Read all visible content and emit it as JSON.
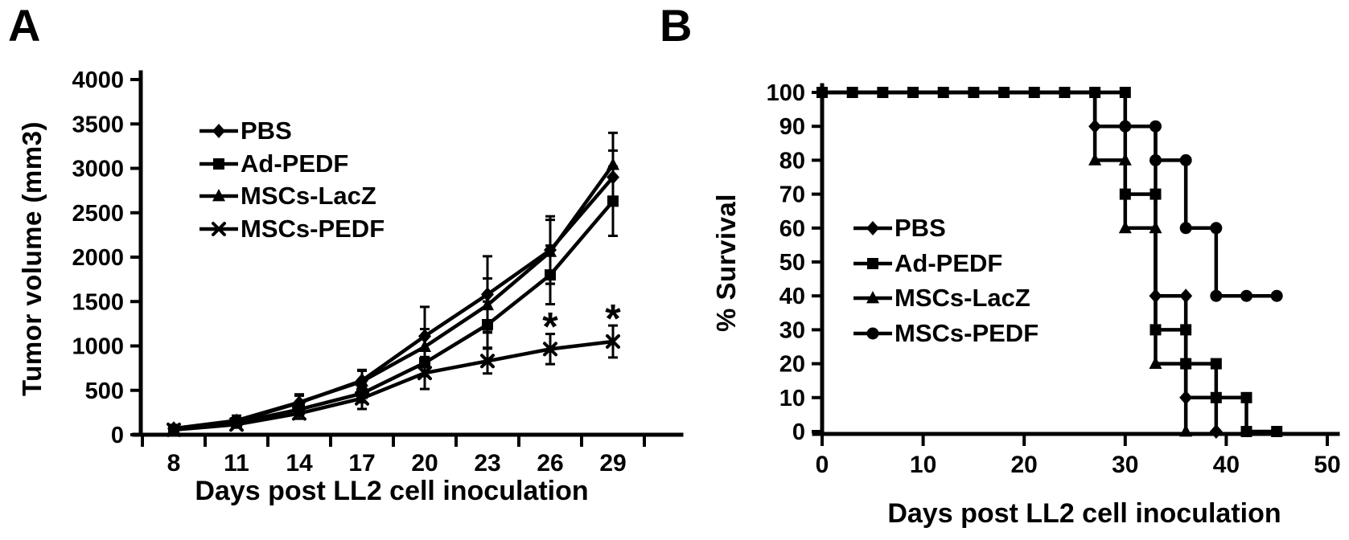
{
  "colors": {
    "ink": "#000000",
    "background": "#ffffff"
  },
  "panel_a": {
    "letter": "A",
    "y_axis_title": "Tumor volume (mm3)",
    "x_axis_title": "Days  post LL2 cell inoculation",
    "legend": [
      "PBS",
      "Ad-PEDF",
      "MSCs-LacZ",
      "MSCs-PEDF"
    ],
    "significance_marker": "*"
  },
  "panel_b": {
    "letter": "B",
    "y_axis_title": "% Survival",
    "x_axis_title": "Days  post LL2 cell inoculation",
    "legend": [
      "PBS",
      "Ad-PEDF",
      "MSCs-LacZ",
      "MSCs-PEDF"
    ]
  },
  "chart_data": [
    {
      "id": "tumor-volume",
      "type": "line",
      "title": "",
      "xlabel": "Days  post LL2 cell inoculation",
      "ylabel": "Tumor volume (mm3)",
      "categories": [
        8,
        11,
        14,
        17,
        20,
        23,
        26,
        29
      ],
      "xticks": [
        "8",
        "11",
        "14",
        "17",
        "20",
        "23",
        "26",
        "29"
      ],
      "ylim": [
        0,
        4000
      ],
      "ytick_step": 500,
      "yticks": [
        "0",
        "500",
        "1000",
        "1500",
        "2000",
        "2500",
        "3000",
        "3500",
        "4000"
      ],
      "grid": false,
      "legend_position": "upper-left-inside",
      "series": [
        {
          "name": "PBS",
          "marker": "diamond",
          "values": [
            70,
            150,
            360,
            610,
            1110,
            1580,
            2080,
            2900
          ],
          "errors": [
            25,
            50,
            80,
            110,
            330,
            430,
            380,
            300
          ]
        },
        {
          "name": "Ad-PEDF",
          "marker": "square",
          "values": [
            60,
            135,
            285,
            465,
            810,
            1240,
            1800,
            2630
          ],
          "errors": [
            20,
            45,
            70,
            100,
            150,
            260,
            330,
            390
          ]
        },
        {
          "name": "MSCs-LacZ",
          "marker": "triangle",
          "values": [
            70,
            160,
            365,
            600,
            990,
            1460,
            2060,
            3040
          ],
          "errors": [
            25,
            55,
            90,
            130,
            200,
            300,
            360,
            360
          ]
        },
        {
          "name": "MSCs-PEDF",
          "marker": "xmark",
          "values": [
            55,
            115,
            240,
            410,
            695,
            830,
            965,
            1050
          ],
          "errors": [
            15,
            35,
            60,
            120,
            180,
            140,
            170,
            180
          ]
        }
      ],
      "annotations": [
        {
          "x": 26,
          "y": 1300,
          "text": "*"
        },
        {
          "x": 29,
          "y": 1390,
          "text": "*"
        }
      ]
    },
    {
      "id": "survival",
      "type": "step-line",
      "title": "",
      "xlabel": "Days  post LL2 cell inoculation",
      "ylabel": "% Survival",
      "xlim": [
        0,
        50
      ],
      "xticks": [
        "0",
        "10",
        "20",
        "30",
        "40",
        "50"
      ],
      "ylim": [
        0,
        100
      ],
      "ytick_step": 10,
      "yticks": [
        "0",
        "10",
        "20",
        "30",
        "40",
        "50",
        "60",
        "70",
        "80",
        "90",
        "100"
      ],
      "grid": false,
      "legend_position": "center-left-inside",
      "series": [
        {
          "name": "PBS",
          "marker": "diamond",
          "steps": [
            [
              0,
              100
            ],
            [
              27,
              100
            ],
            [
              27,
              90
            ],
            [
              33,
              90
            ],
            [
              33,
              40
            ],
            [
              36,
              40
            ],
            [
              36,
              10
            ],
            [
              39,
              10
            ],
            [
              39,
              0
            ]
          ],
          "marker_points": [
            [
              27,
              90
            ],
            [
              33,
              40
            ],
            [
              36,
              40
            ],
            [
              36,
              10
            ],
            [
              39,
              10
            ],
            [
              39,
              0
            ]
          ]
        },
        {
          "name": "Ad-PEDF",
          "marker": "square",
          "steps": [
            [
              0,
              100
            ],
            [
              30,
              100
            ],
            [
              30,
              70
            ],
            [
              33,
              70
            ],
            [
              33,
              30
            ],
            [
              36,
              30
            ],
            [
              36,
              20
            ],
            [
              39,
              20
            ],
            [
              39,
              10
            ],
            [
              42,
              10
            ],
            [
              42,
              0
            ],
            [
              45,
              0
            ]
          ],
          "marker_points": [
            [
              0,
              100
            ],
            [
              3,
              100
            ],
            [
              6,
              100
            ],
            [
              9,
              100
            ],
            [
              12,
              100
            ],
            [
              15,
              100
            ],
            [
              18,
              100
            ],
            [
              21,
              100
            ],
            [
              24,
              100
            ],
            [
              27,
              100
            ],
            [
              30,
              100
            ],
            [
              30,
              70
            ],
            [
              33,
              70
            ],
            [
              33,
              30
            ],
            [
              36,
              30
            ],
            [
              36,
              20
            ],
            [
              39,
              20
            ],
            [
              39,
              10
            ],
            [
              42,
              10
            ],
            [
              42,
              0
            ],
            [
              45,
              0
            ]
          ]
        },
        {
          "name": "MSCs-LacZ",
          "marker": "triangle",
          "steps": [
            [
              0,
              100
            ],
            [
              27,
              100
            ],
            [
              27,
              80
            ],
            [
              30,
              80
            ],
            [
              30,
              60
            ],
            [
              33,
              60
            ],
            [
              33,
              20
            ],
            [
              36,
              20
            ],
            [
              36,
              0
            ]
          ],
          "marker_points": [
            [
              27,
              80
            ],
            [
              30,
              80
            ],
            [
              30,
              60
            ],
            [
              33,
              60
            ],
            [
              33,
              20
            ],
            [
              36,
              0
            ]
          ]
        },
        {
          "name": "MSCs-PEDF",
          "marker": "circle",
          "steps": [
            [
              0,
              100
            ],
            [
              30,
              100
            ],
            [
              30,
              90
            ],
            [
              33,
              90
            ],
            [
              33,
              80
            ],
            [
              36,
              80
            ],
            [
              36,
              60
            ],
            [
              39,
              60
            ],
            [
              39,
              40
            ],
            [
              45.5,
              40
            ]
          ],
          "marker_points": [
            [
              30,
              90
            ],
            [
              33,
              90
            ],
            [
              33,
              80
            ],
            [
              36,
              80
            ],
            [
              36,
              60
            ],
            [
              39,
              60
            ],
            [
              39,
              40
            ],
            [
              42,
              40
            ],
            [
              45,
              40
            ]
          ]
        }
      ]
    }
  ]
}
